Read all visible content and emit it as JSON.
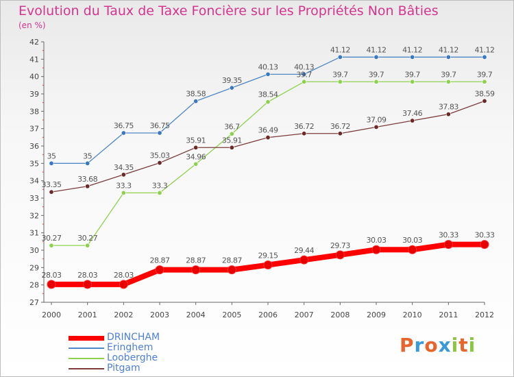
{
  "header": {
    "title": "Evolution du Taux de Taxe Foncière sur les Propriétés Non Bâties",
    "subtitle": "(en %)"
  },
  "brand": {
    "letters": [
      {
        "ch": "P",
        "color": "#e8642d"
      },
      {
        "ch": "r",
        "color": "#3a9ad9"
      },
      {
        "ch": "o",
        "color": "#e8642d"
      },
      {
        "ch": "x",
        "color": "#3a9ad9"
      },
      {
        "ch": "i",
        "color": "#8cc63f"
      },
      {
        "ch": "t",
        "color": "#e8642d"
      },
      {
        "ch": "i",
        "color": "#8cc63f"
      }
    ]
  },
  "chart_data": {
    "type": "line",
    "title": "Evolution du Taux de Taxe Foncière sur les Propriétés Non Bâties",
    "ylabel": "(en %)",
    "xlabel": "",
    "ylim": [
      27,
      42
    ],
    "yticks": [
      "27",
      "28",
      "29",
      "30",
      "31",
      "32",
      "33",
      "34",
      "35",
      "36",
      "37",
      "38",
      "39",
      "40",
      "41",
      "42"
    ],
    "grid": false,
    "legend_position": "bottom-left",
    "x": [
      "2000",
      "2001",
      "2002",
      "2003",
      "2004",
      "2005",
      "2006",
      "2007",
      "2008",
      "2009",
      "2010",
      "2011",
      "2012"
    ],
    "series": [
      {
        "name": "Eringhem",
        "color": "#4f86c6",
        "marker": "#3a78c2",
        "values": [
          35,
          35,
          36.75,
          36.75,
          38.58,
          39.35,
          40.13,
          40.13,
          41.12,
          41.12,
          41.12,
          41.12,
          41.12
        ],
        "labels": [
          "35",
          "35",
          "36.75",
          "36.75",
          "38.58",
          "39.35",
          "40.13",
          "40.13",
          "41.12",
          "41.12",
          "41.12",
          "41.12",
          "41.12"
        ]
      },
      {
        "name": "Looberghe",
        "color": "#8fd14f",
        "marker": "#8fd14f",
        "values": [
          30.27,
          30.27,
          33.3,
          33.3,
          34.96,
          36.7,
          38.54,
          39.7,
          39.7,
          39.7,
          39.7,
          39.7,
          39.7
        ],
        "labels": [
          "30.27",
          "30.27",
          "33.3",
          "33.3",
          "34.96",
          "36.7",
          "38.54",
          "39.7",
          "39.7",
          "39.7",
          "39.7",
          "39.7",
          "39.7"
        ]
      },
      {
        "name": "Pitgam",
        "color": "#7d3c3c",
        "marker": "#6b2a2a",
        "values": [
          33.35,
          33.68,
          34.35,
          35.03,
          35.91,
          35.91,
          36.49,
          36.72,
          36.72,
          37.09,
          37.46,
          37.83,
          38.59
        ],
        "labels": [
          "33.35",
          "33.68",
          "34.35",
          "35.03",
          "35.91",
          "35.91",
          "36.49",
          "36.72",
          "36.72",
          "37.09",
          "37.46",
          "37.83",
          "38.59"
        ]
      },
      {
        "name": "DRINCHAM",
        "color": "#ff0000",
        "marker": "#e80000",
        "values": [
          28.03,
          28.03,
          28.03,
          28.87,
          28.87,
          28.87,
          29.15,
          29.44,
          29.73,
          30.03,
          30.03,
          30.33,
          30.33
        ],
        "labels": [
          "28.03",
          "28.03",
          "28.03",
          "28.87",
          "28.87",
          "28.87",
          "29.15",
          "29.44",
          "29.73",
          "30.03",
          "30.03",
          "30.33",
          "30.33"
        ]
      }
    ],
    "legend_order": [
      "DRINCHAM",
      "Eringhem",
      "Looberghe",
      "Pitgam"
    ]
  }
}
